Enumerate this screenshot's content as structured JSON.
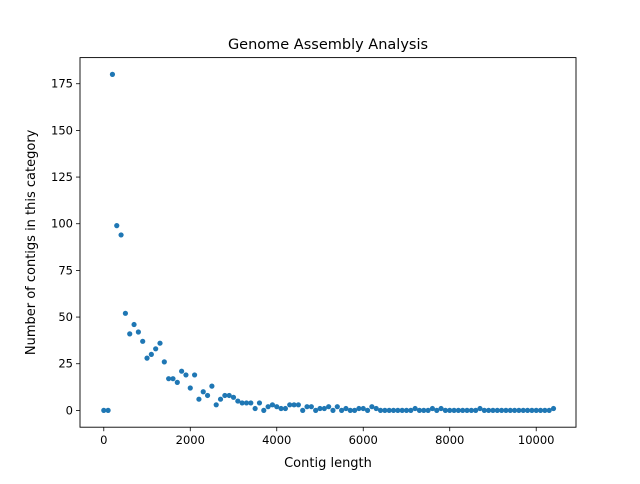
{
  "chart_data": {
    "type": "scatter",
    "title": "Genome Assembly Analysis",
    "xlabel": "Contig length",
    "ylabel": "Number of contigs in this category",
    "xlim": [
      -550,
      10920
    ],
    "ylim": [
      -9,
      189
    ],
    "xticks": [
      0,
      2000,
      4000,
      6000,
      8000,
      10000
    ],
    "yticks": [
      0,
      25,
      50,
      75,
      100,
      125,
      150,
      175
    ],
    "grid": false,
    "legend": "none",
    "series": [
      {
        "color": "#1f77b4",
        "x": [
          0,
          100,
          200,
          300,
          400,
          500,
          600,
          700,
          800,
          900,
          1000,
          1100,
          1200,
          1300,
          1400,
          1500,
          1600,
          1700,
          1800,
          1900,
          2000,
          2100,
          2200,
          2300,
          2400,
          2500,
          2600,
          2700,
          2800,
          2900,
          3000,
          3100,
          3200,
          3300,
          3400,
          3500,
          3600,
          3700,
          3800,
          3900,
          4000,
          4100,
          4200,
          4300,
          4400,
          4500,
          4600,
          4700,
          4800,
          4900,
          5000,
          5100,
          5200,
          5300,
          5400,
          5500,
          5600,
          5700,
          5800,
          5900,
          6000,
          6100,
          6200,
          6300,
          6400,
          6500,
          6600,
          6700,
          6800,
          6900,
          7000,
          7100,
          7200,
          7300,
          7400,
          7500,
          7600,
          7700,
          7800,
          7900,
          8000,
          8100,
          8200,
          8300,
          8400,
          8500,
          8600,
          8700,
          8800,
          8900,
          9000,
          9100,
          9200,
          9300,
          9400,
          9500,
          9600,
          9700,
          9800,
          9900,
          10000,
          10100,
          10200,
          10300,
          10400
        ],
        "y": [
          0,
          0,
          180,
          99,
          94,
          52,
          41,
          46,
          42,
          37,
          28,
          30,
          33,
          36,
          26,
          17,
          17,
          15,
          21,
          19,
          12,
          19,
          6,
          10,
          8,
          13,
          3,
          6,
          8,
          8,
          7,
          5,
          4,
          4,
          4,
          1,
          4,
          0,
          2,
          3,
          2,
          1,
          1,
          3,
          3,
          3,
          0,
          2,
          2,
          0,
          1,
          1,
          2,
          0,
          2,
          0,
          1,
          0,
          0,
          1,
          1,
          0,
          2,
          1,
          0,
          0,
          0,
          0,
          0,
          0,
          0,
          0,
          1,
          0,
          0,
          0,
          1,
          0,
          1,
          0,
          0,
          0,
          0,
          0,
          0,
          0,
          0,
          1,
          0,
          0,
          0,
          0,
          0,
          0,
          0,
          0,
          0,
          0,
          0,
          0,
          0,
          0,
          0,
          0,
          1
        ]
      }
    ]
  }
}
